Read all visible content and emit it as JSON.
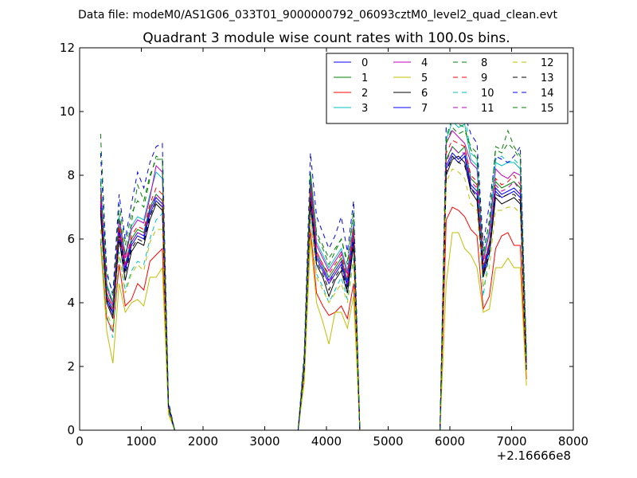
{
  "suptitle": "Data file: modeM0/AS1G06_033T01_9000000792_06093cztM0_level2_quad_clean.evt",
  "chart_data": {
    "type": "line",
    "title": "Quadrant 3 module wise count rates with 100.0s bins.",
    "xlabel": "",
    "ylabel": "",
    "x_offset_label": "+2.16666e8",
    "xlim": [
      0,
      8000
    ],
    "ylim": [
      0,
      12
    ],
    "xticks": [
      0,
      1000,
      2000,
      3000,
      4000,
      5000,
      6000,
      7000,
      8000
    ],
    "xtick_labels": [
      "0",
      "1000",
      "2000",
      "3000",
      "4000",
      "5000",
      "6000",
      "7000",
      "8000"
    ],
    "yticks": [
      0,
      2,
      4,
      6,
      8,
      10,
      12
    ],
    "ytick_labels": [
      "0",
      "2",
      "4",
      "6",
      "8",
      "10",
      "12"
    ],
    "legend_position": "top-right",
    "legend_columns": 4,
    "x": [
      340,
      440,
      540,
      640,
      740,
      840,
      940,
      1040,
      1140,
      1240,
      1340,
      1440,
      1540,
      1640,
      3540,
      3640,
      3740,
      3840,
      3940,
      4040,
      4140,
      4240,
      4340,
      4440,
      4540,
      4640,
      5840,
      5940,
      6040,
      6140,
      6240,
      6340,
      6440,
      6540,
      6640,
      6740,
      6840,
      6940,
      7040,
      7140,
      7240
    ],
    "series": [
      {
        "name": "0",
        "color": "#0000ff",
        "dash": "solid",
        "values": [
          7.0,
          4.1,
          3.6,
          6.2,
          5.0,
          5.8,
          6.1,
          6.0,
          6.8,
          7.2,
          7.0,
          0.7,
          0.0,
          0.0,
          0.0,
          2.0,
          7.3,
          5.4,
          5.0,
          4.6,
          4.9,
          5.2,
          4.5,
          6.0,
          0.0,
          0.0,
          0.0,
          8.2,
          8.6,
          8.4,
          8.6,
          7.6,
          7.4,
          4.9,
          5.7,
          7.5,
          7.3,
          7.4,
          7.5,
          7.3,
          2.0
        ]
      },
      {
        "name": "1",
        "color": "#008000",
        "dash": "solid",
        "values": [
          7.3,
          4.3,
          3.8,
          6.4,
          5.2,
          6.0,
          6.3,
          6.2,
          7.0,
          7.4,
          7.2,
          0.7,
          0.0,
          0.0,
          0.0,
          2.1,
          7.6,
          5.6,
          5.2,
          4.8,
          5.1,
          5.4,
          4.7,
          6.2,
          0.0,
          0.0,
          0.0,
          8.5,
          8.9,
          8.7,
          8.9,
          7.9,
          7.7,
          5.1,
          5.9,
          7.8,
          7.6,
          7.7,
          7.8,
          7.6,
          2.1
        ]
      },
      {
        "name": "2",
        "color": "#ff0000",
        "dash": "solid",
        "values": [
          5.9,
          3.5,
          3.1,
          5.2,
          3.9,
          4.1,
          4.6,
          4.4,
          5.3,
          5.5,
          5.7,
          0.6,
          0.0,
          0.0,
          0.0,
          1.7,
          6.3,
          4.3,
          3.9,
          3.6,
          3.7,
          3.9,
          3.5,
          4.6,
          0.0,
          0.0,
          0.0,
          6.6,
          7.0,
          6.9,
          6.7,
          6.3,
          6.1,
          3.8,
          4.2,
          5.7,
          6.1,
          6.2,
          5.8,
          5.8,
          1.6
        ]
      },
      {
        "name": "3",
        "color": "#00bfbf",
        "dash": "solid",
        "values": [
          7.9,
          4.6,
          4.0,
          6.7,
          5.5,
          6.4,
          6.7,
          6.6,
          7.4,
          8.1,
          7.9,
          0.8,
          0.0,
          0.0,
          0.0,
          2.2,
          7.9,
          5.9,
          5.5,
          5.1,
          5.4,
          5.7,
          5.0,
          6.5,
          0.0,
          0.0,
          0.0,
          9.1,
          9.7,
          9.5,
          9.6,
          8.5,
          8.3,
          5.4,
          6.3,
          8.4,
          8.3,
          8.4,
          8.4,
          8.2,
          2.3
        ]
      },
      {
        "name": "4",
        "color": "#bf00bf",
        "dash": "solid",
        "values": [
          7.6,
          4.5,
          3.9,
          6.6,
          5.4,
          6.3,
          6.6,
          6.5,
          7.3,
          8.3,
          8.1,
          0.8,
          0.0,
          0.0,
          0.0,
          2.2,
          7.8,
          5.8,
          5.4,
          5.0,
          5.3,
          5.6,
          4.9,
          6.4,
          0.0,
          0.0,
          0.0,
          9.0,
          9.4,
          9.2,
          9.0,
          8.4,
          8.2,
          5.3,
          6.2,
          8.2,
          8.0,
          7.9,
          8.1,
          8.0,
          2.2
        ]
      },
      {
        "name": "5",
        "color": "#bfbf00",
        "dash": "solid",
        "values": [
          5.8,
          3.1,
          2.1,
          4.6,
          3.7,
          4.0,
          4.1,
          3.9,
          4.8,
          4.8,
          5.1,
          0.5,
          0.0,
          0.0,
          0.0,
          1.5,
          6.0,
          4.0,
          3.4,
          2.7,
          3.7,
          3.7,
          3.2,
          4.2,
          0.0,
          0.0,
          0.0,
          4.6,
          6.2,
          6.2,
          5.7,
          5.5,
          5.1,
          3.7,
          3.8,
          5.1,
          5.1,
          5.4,
          5.1,
          5.1,
          1.4
        ]
      },
      {
        "name": "6",
        "color": "#000000",
        "dash": "solid",
        "values": [
          6.8,
          4.0,
          3.5,
          6.0,
          4.7,
          5.6,
          5.9,
          5.8,
          6.6,
          7.1,
          6.9,
          0.7,
          0.0,
          0.0,
          0.0,
          1.9,
          7.1,
          5.2,
          4.8,
          4.2,
          4.7,
          5.0,
          4.3,
          5.8,
          0.0,
          0.0,
          0.0,
          8.0,
          8.5,
          8.6,
          8.4,
          7.5,
          7.2,
          4.8,
          5.5,
          7.3,
          7.1,
          7.2,
          7.3,
          7.1,
          1.9
        ]
      },
      {
        "name": "7",
        "color": "#0000ff",
        "dash": "solid",
        "values": [
          7.1,
          4.2,
          3.7,
          6.3,
          5.1,
          5.9,
          6.2,
          6.1,
          6.9,
          7.3,
          7.1,
          0.7,
          0.0,
          0.0,
          0.0,
          2.0,
          7.4,
          5.5,
          5.1,
          4.7,
          5.0,
          5.3,
          4.6,
          6.1,
          0.0,
          0.0,
          0.0,
          8.3,
          8.7,
          8.5,
          8.7,
          7.7,
          7.5,
          5.0,
          5.8,
          7.6,
          7.4,
          7.5,
          7.6,
          7.4,
          2.0
        ]
      },
      {
        "name": "8",
        "color": "#008000",
        "dash": "dashed",
        "values": [
          9.3,
          5.0,
          4.2,
          7.1,
          5.8,
          6.8,
          7.2,
          7.0,
          7.9,
          8.6,
          8.5,
          0.8,
          0.0,
          0.0,
          0.0,
          2.3,
          8.1,
          6.2,
          5.8,
          5.4,
          5.7,
          6.0,
          5.3,
          6.9,
          0.0,
          0.0,
          0.0,
          9.0,
          9.5,
          9.3,
          9.4,
          8.9,
          8.7,
          5.6,
          6.5,
          8.9,
          8.8,
          9.4,
          8.9,
          8.6,
          2.4
        ]
      },
      {
        "name": "9",
        "color": "#ff0000",
        "dash": "dashed",
        "values": [
          7.4,
          4.3,
          3.8,
          6.4,
          5.2,
          6.1,
          6.4,
          6.3,
          7.1,
          7.6,
          7.4,
          0.7,
          0.0,
          0.0,
          0.0,
          2.1,
          7.5,
          5.6,
          5.2,
          4.9,
          5.2,
          5.5,
          4.8,
          6.3,
          0.0,
          0.0,
          0.0,
          8.7,
          9.1,
          9.0,
          8.9,
          8.0,
          7.8,
          5.2,
          5.9,
          7.9,
          7.7,
          7.8,
          8.0,
          7.7,
          2.1
        ]
      },
      {
        "name": "10",
        "color": "#00bfbf",
        "dash": "dashed",
        "values": [
          6.0,
          3.6,
          2.9,
          5.6,
          4.4,
          5.0,
          5.3,
          5.2,
          6.0,
          6.6,
          6.8,
          0.6,
          0.0,
          0.0,
          0.0,
          1.8,
          6.8,
          4.9,
          4.5,
          4.0,
          4.4,
          4.8,
          4.1,
          5.4,
          0.0,
          0.0,
          0.0,
          9.5,
          10.6,
          10.3,
          9.9,
          8.7,
          8.5,
          4.2,
          5.6,
          8.5,
          8.6,
          8.4,
          8.5,
          8.3,
          2.2
        ]
      },
      {
        "name": "11",
        "color": "#bf00bf",
        "dash": "dashed",
        "values": [
          7.2,
          4.2,
          3.6,
          6.2,
          5.1,
          5.9,
          6.2,
          6.1,
          6.9,
          7.4,
          7.2,
          0.7,
          0.0,
          0.0,
          0.0,
          2.0,
          7.4,
          5.5,
          5.1,
          4.6,
          5.0,
          5.3,
          4.6,
          6.1,
          0.0,
          0.0,
          0.0,
          8.4,
          8.9,
          8.7,
          8.7,
          7.8,
          7.6,
          5.0,
          5.7,
          7.7,
          7.5,
          7.6,
          7.8,
          7.5,
          2.0
        ]
      },
      {
        "name": "12",
        "color": "#bfbf00",
        "dash": "dashed",
        "values": [
          6.3,
          3.7,
          3.2,
          5.5,
          4.3,
          4.9,
          5.2,
          5.0,
          5.9,
          6.3,
          6.3,
          0.6,
          0.0,
          0.0,
          0.0,
          1.8,
          6.7,
          4.8,
          4.4,
          4.0,
          4.3,
          4.6,
          4.0,
          5.3,
          0.0,
          0.0,
          0.0,
          7.8,
          8.2,
          8.1,
          7.9,
          7.1,
          6.9,
          4.5,
          5.1,
          6.9,
          6.9,
          7.0,
          7.0,
          6.8,
          1.8
        ]
      },
      {
        "name": "13",
        "color": "#000000",
        "dash": "dashed",
        "values": [
          6.9,
          4.1,
          3.6,
          6.1,
          4.9,
          5.7,
          6.0,
          5.9,
          6.7,
          7.2,
          7.0,
          0.7,
          0.0,
          0.0,
          0.0,
          1.9,
          7.2,
          5.3,
          4.9,
          4.4,
          4.8,
          5.1,
          4.4,
          5.9,
          0.0,
          0.0,
          0.0,
          8.1,
          8.6,
          8.4,
          8.3,
          7.6,
          7.3,
          4.9,
          5.6,
          7.4,
          7.3,
          7.4,
          7.4,
          7.2,
          1.9
        ]
      },
      {
        "name": "14",
        "color": "#0000ff",
        "dash": "dashed",
        "values": [
          8.7,
          4.9,
          4.3,
          7.4,
          6.0,
          7.1,
          8.1,
          7.6,
          8.4,
          8.9,
          9.0,
          0.9,
          0.0,
          0.0,
          0.0,
          2.4,
          8.7,
          6.7,
          6.2,
          5.7,
          6.1,
          6.7,
          5.6,
          7.2,
          0.0,
          0.0,
          0.0,
          9.6,
          10.4,
          10.1,
          9.9,
          9.3,
          9.0,
          5.8,
          7.1,
          8.6,
          8.5,
          8.4,
          8.6,
          8.9,
          2.4
        ]
      },
      {
        "name": "15",
        "color": "#008000",
        "dash": "dashed",
        "values": [
          7.8,
          4.5,
          4.0,
          6.8,
          5.5,
          6.5,
          7.7,
          7.2,
          8.0,
          8.5,
          8.5,
          0.8,
          0.0,
          0.0,
          0.0,
          2.2,
          8.1,
          6.1,
          5.7,
          5.2,
          5.6,
          6.0,
          5.2,
          6.8,
          0.0,
          0.0,
          0.0,
          9.2,
          9.8,
          9.6,
          9.5,
          8.8,
          8.5,
          5.5,
          6.6,
          8.8,
          8.7,
          9.0,
          8.8,
          8.5,
          2.3
        ]
      }
    ]
  }
}
